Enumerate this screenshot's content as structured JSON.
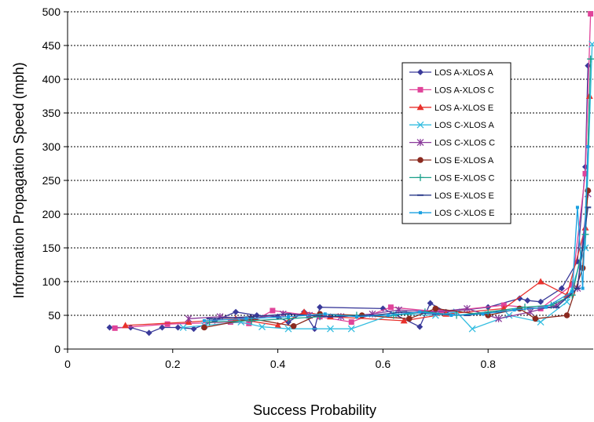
{
  "chart_data": {
    "type": "line",
    "xlabel": "Success Probability",
    "ylabel": "Information Propagation Speed (mph)",
    "xlim": [
      0,
      1
    ],
    "ylim": [
      0,
      500
    ],
    "x_ticks": [
      "0",
      "0.2",
      "0.4",
      "0.6",
      "0.8"
    ],
    "y_ticks": [
      "0",
      "50",
      "100",
      "150",
      "200",
      "250",
      "300",
      "350",
      "400",
      "450",
      "500"
    ],
    "grid": "horizontal-dashed",
    "legend_position": "right",
    "series": [
      {
        "name": "LOS A-XLOS A",
        "color": "#3a3a9a",
        "marker": "diamond",
        "x": [
          0.08,
          0.12,
          0.155,
          0.18,
          0.21,
          0.24,
          0.28,
          0.32,
          0.36,
          0.4,
          0.42,
          0.45,
          0.47,
          0.48,
          0.6,
          0.67,
          0.69,
          0.72,
          0.8,
          0.86,
          0.875,
          0.9,
          0.94,
          0.97,
          0.985,
          0.99
        ],
        "y": [
          32,
          32,
          24,
          32,
          32,
          30,
          42,
          55,
          50,
          48,
          40,
          55,
          30,
          62,
          60,
          33,
          68,
          55,
          62,
          75,
          72,
          70,
          90,
          130,
          270,
          420
        ]
      },
      {
        "name": "LOS A-XLOS C",
        "color": "#e0449a",
        "marker": "square",
        "x": [
          0.09,
          0.19,
          0.31,
          0.345,
          0.39,
          0.48,
          0.54,
          0.615,
          0.71,
          0.83,
          0.9,
          0.96,
          0.985,
          0.995
        ],
        "y": [
          31,
          37,
          40,
          38,
          57,
          48,
          40,
          62,
          55,
          65,
          60,
          95,
          260,
          497
        ]
      },
      {
        "name": "LOS A-XLOS E",
        "color": "#e8312c",
        "marker": "triangle",
        "x": [
          0.11,
          0.23,
          0.32,
          0.4,
          0.45,
          0.5,
          0.64,
          0.72,
          0.83,
          0.9,
          0.95,
          0.985,
          0.993
        ],
        "y": [
          35,
          40,
          45,
          35,
          55,
          48,
          42,
          52,
          60,
          100,
          80,
          180,
          375
        ]
      },
      {
        "name": "LOS C-XLOS A",
        "color": "#33bde0",
        "marker": "x",
        "x": [
          0.22,
          0.26,
          0.33,
          0.37,
          0.42,
          0.5,
          0.54,
          0.62,
          0.7,
          0.74,
          0.77,
          0.84,
          0.9,
          0.95,
          0.985,
          0.998
        ],
        "y": [
          32,
          35,
          40,
          33,
          30,
          30,
          30,
          52,
          50,
          55,
          30,
          50,
          40,
          70,
          150,
          452
        ]
      },
      {
        "name": "LOS C-XLOS C",
        "color": "#8a3a9a",
        "marker": "asterisk",
        "x": [
          0.23,
          0.29,
          0.35,
          0.41,
          0.46,
          0.52,
          0.58,
          0.63,
          0.7,
          0.76,
          0.82,
          0.88,
          0.93,
          0.97,
          0.99
        ],
        "y": [
          45,
          48,
          45,
          52,
          50,
          48,
          52,
          58,
          55,
          60,
          45,
          55,
          65,
          90,
          230
        ]
      },
      {
        "name": "LOS E-XLOS A",
        "color": "#8b2a1f",
        "marker": "circle",
        "x": [
          0.26,
          0.35,
          0.43,
          0.48,
          0.56,
          0.65,
          0.7,
          0.8,
          0.86,
          0.89,
          0.95,
          0.98,
          0.99
        ],
        "y": [
          32,
          45,
          34,
          52,
          50,
          45,
          60,
          50,
          60,
          45,
          50,
          120,
          235
        ]
      },
      {
        "name": "LOS E-XLOS C",
        "color": "#1aa08a",
        "marker": "plus",
        "x": [
          0.27,
          0.35,
          0.42,
          0.48,
          0.55,
          0.62,
          0.68,
          0.74,
          0.8,
          0.87,
          0.92,
          0.96,
          0.985,
          0.995
        ],
        "y": [
          40,
          42,
          45,
          48,
          50,
          50,
          55,
          50,
          55,
          62,
          65,
          80,
          170,
          430
        ]
      },
      {
        "name": "LOS E-XLOS E",
        "color": "#2a3a8a",
        "marker": "dash",
        "x": [
          0.27,
          0.35,
          0.42,
          0.5,
          0.58,
          0.64,
          0.7,
          0.76,
          0.82,
          0.88,
          0.93,
          0.97,
          0.99
        ],
        "y": [
          45,
          48,
          52,
          48,
          50,
          55,
          52,
          50,
          55,
          60,
          62,
          90,
          210
        ]
      },
      {
        "name": "LOS C-XLOS E",
        "color": "#1aa0e0",
        "marker": "small-square",
        "x": [
          0.26,
          0.34,
          0.42,
          0.49,
          0.55,
          0.61,
          0.67,
          0.73,
          0.79,
          0.85,
          0.91,
          0.96,
          0.97,
          0.98,
          0.99
        ],
        "y": [
          42,
          45,
          48,
          52,
          48,
          50,
          55,
          50,
          52,
          58,
          62,
          85,
          210,
          90,
          300
        ]
      }
    ]
  }
}
